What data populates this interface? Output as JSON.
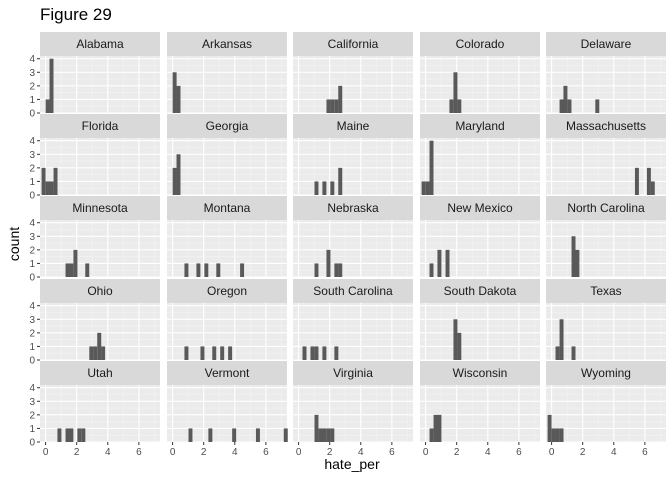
{
  "chart_data": {
    "type": "bar",
    "title": "Figure 29",
    "xlabel": "hate_per",
    "ylabel": "count",
    "xlim": [
      -0.36,
      7.36
    ],
    "ylim": [
      0,
      4.2
    ],
    "x_ticks": [
      0,
      2,
      4,
      6
    ],
    "y_ticks": [
      0,
      1,
      2,
      3,
      4
    ],
    "bin_width": 0.255,
    "grid": true,
    "facets": [
      {
        "name": "Alabama",
        "bars": [
          {
            "x": 0.13,
            "count": 1
          },
          {
            "x": 0.38,
            "count": 4
          }
        ]
      },
      {
        "name": "Arkansas",
        "bars": [
          {
            "x": 0.13,
            "count": 3
          },
          {
            "x": 0.38,
            "count": 2
          }
        ]
      },
      {
        "name": "California",
        "bars": [
          {
            "x": 1.92,
            "count": 1
          },
          {
            "x": 2.17,
            "count": 1
          },
          {
            "x": 2.43,
            "count": 1
          },
          {
            "x": 2.68,
            "count": 2
          }
        ]
      },
      {
        "name": "Colorado",
        "bars": [
          {
            "x": 1.66,
            "count": 1
          },
          {
            "x": 1.92,
            "count": 3
          },
          {
            "x": 2.17,
            "count": 1
          }
        ]
      },
      {
        "name": "Delaware",
        "bars": [
          {
            "x": 0.64,
            "count": 1
          },
          {
            "x": 0.89,
            "count": 2
          },
          {
            "x": 1.15,
            "count": 1
          },
          {
            "x": 2.94,
            "count": 1
          }
        ]
      },
      {
        "name": "Florida",
        "bars": [
          {
            "x": -0.13,
            "count": 2
          },
          {
            "x": 0.13,
            "count": 1
          },
          {
            "x": 0.38,
            "count": 1
          },
          {
            "x": 0.64,
            "count": 2
          }
        ]
      },
      {
        "name": "Georgia",
        "bars": [
          {
            "x": 0.13,
            "count": 2
          },
          {
            "x": 0.38,
            "count": 3
          }
        ]
      },
      {
        "name": "Maine",
        "bars": [
          {
            "x": 1.15,
            "count": 1
          },
          {
            "x": 1.66,
            "count": 1
          },
          {
            "x": 2.17,
            "count": 1
          },
          {
            "x": 2.68,
            "count": 2
          }
        ]
      },
      {
        "name": "Maryland",
        "bars": [
          {
            "x": -0.13,
            "count": 1
          },
          {
            "x": 0.13,
            "count": 1
          },
          {
            "x": 0.38,
            "count": 4
          }
        ]
      },
      {
        "name": "Massachusetts",
        "bars": [
          {
            "x": 5.49,
            "count": 2
          },
          {
            "x": 6.26,
            "count": 2
          },
          {
            "x": 6.51,
            "count": 1
          }
        ]
      },
      {
        "name": "Minnesota",
        "bars": [
          {
            "x": 1.41,
            "count": 1
          },
          {
            "x": 1.66,
            "count": 1
          },
          {
            "x": 1.92,
            "count": 2
          },
          {
            "x": 2.68,
            "count": 1
          }
        ]
      },
      {
        "name": "Montana",
        "bars": [
          {
            "x": 0.89,
            "count": 1
          },
          {
            "x": 1.66,
            "count": 1
          },
          {
            "x": 2.17,
            "count": 1
          },
          {
            "x": 2.94,
            "count": 1
          },
          {
            "x": 4.47,
            "count": 1
          }
        ]
      },
      {
        "name": "Nebraska",
        "bars": [
          {
            "x": 1.15,
            "count": 1
          },
          {
            "x": 1.92,
            "count": 2
          },
          {
            "x": 2.43,
            "count": 1
          },
          {
            "x": 2.68,
            "count": 1
          }
        ]
      },
      {
        "name": "New Mexico",
        "bars": [
          {
            "x": 0.38,
            "count": 1
          },
          {
            "x": 0.89,
            "count": 2
          },
          {
            "x": 1.41,
            "count": 2
          }
        ]
      },
      {
        "name": "North Carolina",
        "bars": [
          {
            "x": 1.41,
            "count": 3
          },
          {
            "x": 1.66,
            "count": 2
          }
        ]
      },
      {
        "name": "Ohio",
        "bars": [
          {
            "x": 2.94,
            "count": 1
          },
          {
            "x": 3.19,
            "count": 1
          },
          {
            "x": 3.45,
            "count": 2
          },
          {
            "x": 3.7,
            "count": 1
          }
        ]
      },
      {
        "name": "Oregon",
        "bars": [
          {
            "x": 0.89,
            "count": 1
          },
          {
            "x": 1.92,
            "count": 1
          },
          {
            "x": 2.68,
            "count": 1
          },
          {
            "x": 3.19,
            "count": 1
          },
          {
            "x": 3.7,
            "count": 1
          }
        ]
      },
      {
        "name": "South Carolina",
        "bars": [
          {
            "x": 0.38,
            "count": 1
          },
          {
            "x": 0.89,
            "count": 1
          },
          {
            "x": 1.15,
            "count": 1
          },
          {
            "x": 1.66,
            "count": 1
          },
          {
            "x": 2.43,
            "count": 1
          }
        ]
      },
      {
        "name": "South Dakota",
        "bars": [
          {
            "x": 1.92,
            "count": 3
          },
          {
            "x": 2.17,
            "count": 2
          }
        ]
      },
      {
        "name": "Texas",
        "bars": [
          {
            "x": 0.38,
            "count": 1
          },
          {
            "x": 0.64,
            "count": 3
          },
          {
            "x": 1.41,
            "count": 1
          }
        ]
      },
      {
        "name": "Utah",
        "bars": [
          {
            "x": 0.89,
            "count": 1
          },
          {
            "x": 1.41,
            "count": 1
          },
          {
            "x": 1.66,
            "count": 1
          },
          {
            "x": 2.17,
            "count": 1
          },
          {
            "x": 2.43,
            "count": 1
          }
        ]
      },
      {
        "name": "Vermont",
        "bars": [
          {
            "x": 1.15,
            "count": 1
          },
          {
            "x": 2.43,
            "count": 1
          },
          {
            "x": 3.96,
            "count": 1
          },
          {
            "x": 5.49,
            "count": 1
          },
          {
            "x": 7.28,
            "count": 1
          }
        ]
      },
      {
        "name": "Virginia",
        "bars": [
          {
            "x": 1.15,
            "count": 2
          },
          {
            "x": 1.41,
            "count": 1
          },
          {
            "x": 1.66,
            "count": 1
          },
          {
            "x": 1.92,
            "count": 1
          },
          {
            "x": 2.17,
            "count": 1
          }
        ]
      },
      {
        "name": "Wisconsin",
        "bars": [
          {
            "x": 0.38,
            "count": 1
          },
          {
            "x": 0.64,
            "count": 2
          },
          {
            "x": 0.89,
            "count": 2
          }
        ]
      },
      {
        "name": "Wyoming",
        "bars": [
          {
            "x": -0.13,
            "count": 2
          },
          {
            "x": 0.13,
            "count": 1
          },
          {
            "x": 0.38,
            "count": 1
          },
          {
            "x": 0.64,
            "count": 1
          }
        ]
      }
    ]
  },
  "colors": {
    "bar": "#595959",
    "panel_bg": "#ebebeb",
    "strip_bg": "#d9d9d9",
    "grid_major": "#ffffff",
    "grid_minor": "#f4f4f4",
    "text": "#1a1a1a",
    "tick_label": "#4d4d4d",
    "tick_mark": "#333333"
  }
}
